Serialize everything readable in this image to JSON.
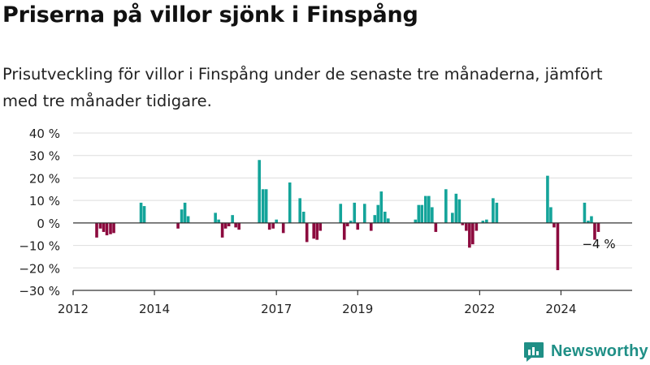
{
  "header": {
    "title": "Priserna på villor sjönk i Finspång",
    "subtitle": "Prisutveckling för villor i Finspång under de senaste tre månaderna, jämfört med tre månader tidigare."
  },
  "brand": {
    "name": "Newsworthy",
    "color": "#1f8f86"
  },
  "colors": {
    "positive": "#14a49a",
    "negative": "#8c0a3e",
    "grid": "#dddddd",
    "axis": "#333333"
  },
  "chart_data": {
    "type": "bar",
    "title": "",
    "xlabel": "",
    "ylabel": "",
    "ylim": [
      -30,
      40
    ],
    "yticks": [
      40,
      30,
      20,
      10,
      0,
      -10,
      -20,
      -30
    ],
    "ytick_labels": [
      "40 %",
      "30 %",
      "20 %",
      "10 %",
      "0 %",
      "−10 %",
      "−20 %",
      "−30 %"
    ],
    "xlim": [
      2012.0,
      2025.75
    ],
    "xticks": [
      2012,
      2014,
      2017,
      2019,
      2022,
      2024
    ],
    "xtick_labels": [
      "2012",
      "2014",
      "2017",
      "2019",
      "2022",
      "2024"
    ],
    "grid": true,
    "last_value_label": "−4 %",
    "x": [
      2012.58,
      2012.67,
      2012.75,
      2012.83,
      2012.92,
      2013.0,
      2013.67,
      2013.75,
      2014.58,
      2014.67,
      2014.75,
      2014.83,
      2015.5,
      2015.58,
      2015.67,
      2015.75,
      2015.83,
      2015.92,
      2016.0,
      2016.08,
      2016.58,
      2016.67,
      2016.75,
      2016.83,
      2016.92,
      2017.0,
      2017.17,
      2017.33,
      2017.58,
      2017.67,
      2017.75,
      2017.92,
      2018.0,
      2018.08,
      2018.58,
      2018.67,
      2018.75,
      2018.83,
      2018.92,
      2019.0,
      2019.17,
      2019.33,
      2019.42,
      2019.5,
      2019.58,
      2019.67,
      2019.75,
      2020.42,
      2020.5,
      2020.58,
      2020.67,
      2020.75,
      2020.83,
      2020.92,
      2021.17,
      2021.33,
      2021.42,
      2021.5,
      2021.58,
      2021.67,
      2021.75,
      2021.83,
      2021.92,
      2022.08,
      2022.17,
      2022.33,
      2022.42,
      2023.67,
      2023.75,
      2023.83,
      2023.92,
      2024.58,
      2024.67,
      2024.75,
      2024.83,
      2024.92
    ],
    "values": [
      -6.5,
      -2.5,
      -4,
      -5.5,
      -5,
      -4.5,
      9,
      7.5,
      -2.5,
      6,
      9,
      3,
      4.5,
      1.5,
      -6.5,
      -2.5,
      -1.5,
      3.5,
      -2,
      -3,
      28,
      15,
      15,
      -3,
      -2.5,
      1.5,
      -4.5,
      18,
      11,
      5,
      -8.5,
      -7,
      -7.5,
      -3.5,
      8.5,
      -7.5,
      -1.5,
      1,
      9,
      -3,
      8.5,
      -3.5,
      3.5,
      8,
      14,
      5,
      2,
      1.5,
      8,
      8,
      12,
      12,
      7,
      -4,
      15,
      4.5,
      13,
      10.5,
      -1,
      -3.5,
      -11,
      -9.5,
      -3.5,
      1,
      1.5,
      11,
      9,
      21,
      7,
      -2,
      -21,
      9,
      1,
      3,
      -7.5,
      -4
    ]
  }
}
